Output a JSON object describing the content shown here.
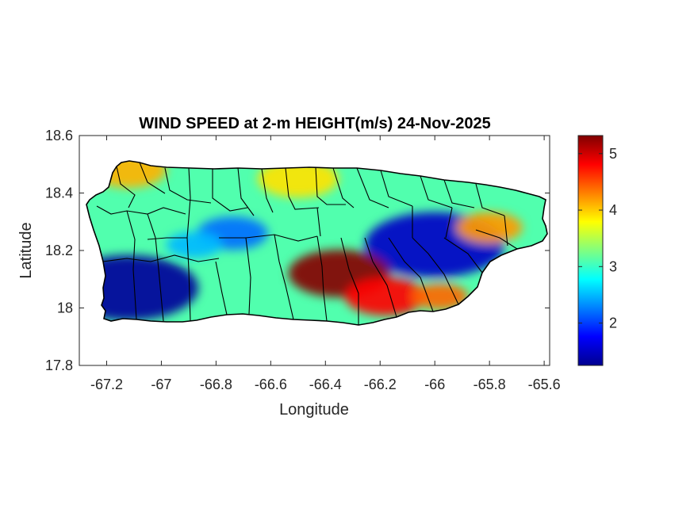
{
  "title": "WIND SPEED at 2-m HEIGHT(m/s) 24-Nov-2025",
  "xlabel": "Longitude",
  "ylabel": "Latitude",
  "colors": {
    "axes": "#262626",
    "background": "#ffffff",
    "boundaries": "#000000",
    "colormap": [
      "#00008f",
      "#0000ff",
      "#0080ff",
      "#00ffff",
      "#80ff80",
      "#ffff00",
      "#ff8000",
      "#ff0000",
      "#800000"
    ]
  },
  "chart_data": {
    "type": "heatmap",
    "title": "WIND SPEED at 2-m HEIGHT(m/s) 24-Nov-2025",
    "xlabel": "Longitude",
    "ylabel": "Latitude",
    "xlim": [
      -67.3,
      -65.58
    ],
    "ylim": [
      17.8,
      18.6
    ],
    "x_ticks": [
      -67.2,
      -67,
      -66.8,
      -66.6,
      -66.4,
      -66.2,
      -66,
      -65.8,
      -65.6
    ],
    "x_tick_labels": [
      "-67.2",
      "-67",
      "-66.8",
      "-66.6",
      "-66.4",
      "-66.2",
      "-66",
      "-65.8",
      "-65.6"
    ],
    "y_ticks": [
      17.8,
      18,
      18.2,
      18.4,
      18.6
    ],
    "y_tick_labels": [
      "17.8",
      "18",
      "18.2",
      "18.4",
      "18.6"
    ],
    "colorbar": {
      "label": "",
      "range": [
        1.25,
        5.32
      ],
      "ticks": [
        2,
        3,
        4,
        5
      ],
      "tick_labels": [
        "2",
        "3",
        "4",
        "5"
      ]
    },
    "base_value": 3.1,
    "features": [
      {
        "name": "southwest low",
        "lon": -67.12,
        "lat": 18.07,
        "value": 1.3
      },
      {
        "name": "east-central low",
        "lon": -66.0,
        "lat": 18.22,
        "value": 1.5
      },
      {
        "name": "central low",
        "lon": -66.74,
        "lat": 18.26,
        "value": 2.2
      },
      {
        "name": "west-central low",
        "lon": -66.88,
        "lat": 18.22,
        "value": 2.5
      },
      {
        "name": "central high",
        "lon": -66.35,
        "lat": 18.12,
        "value": 5.3
      },
      {
        "name": "southern high",
        "lon": -66.18,
        "lat": 18.04,
        "value": 4.8
      },
      {
        "name": "southeast high",
        "lon": -65.98,
        "lat": 18.04,
        "value": 4.4
      },
      {
        "name": "northwest high",
        "lon": -67.12,
        "lat": 18.48,
        "value": 4.1
      },
      {
        "name": "north high",
        "lon": -66.5,
        "lat": 18.45,
        "value": 3.9
      },
      {
        "name": "east high",
        "lon": -65.8,
        "lat": 18.28,
        "value": 4.2
      }
    ]
  }
}
